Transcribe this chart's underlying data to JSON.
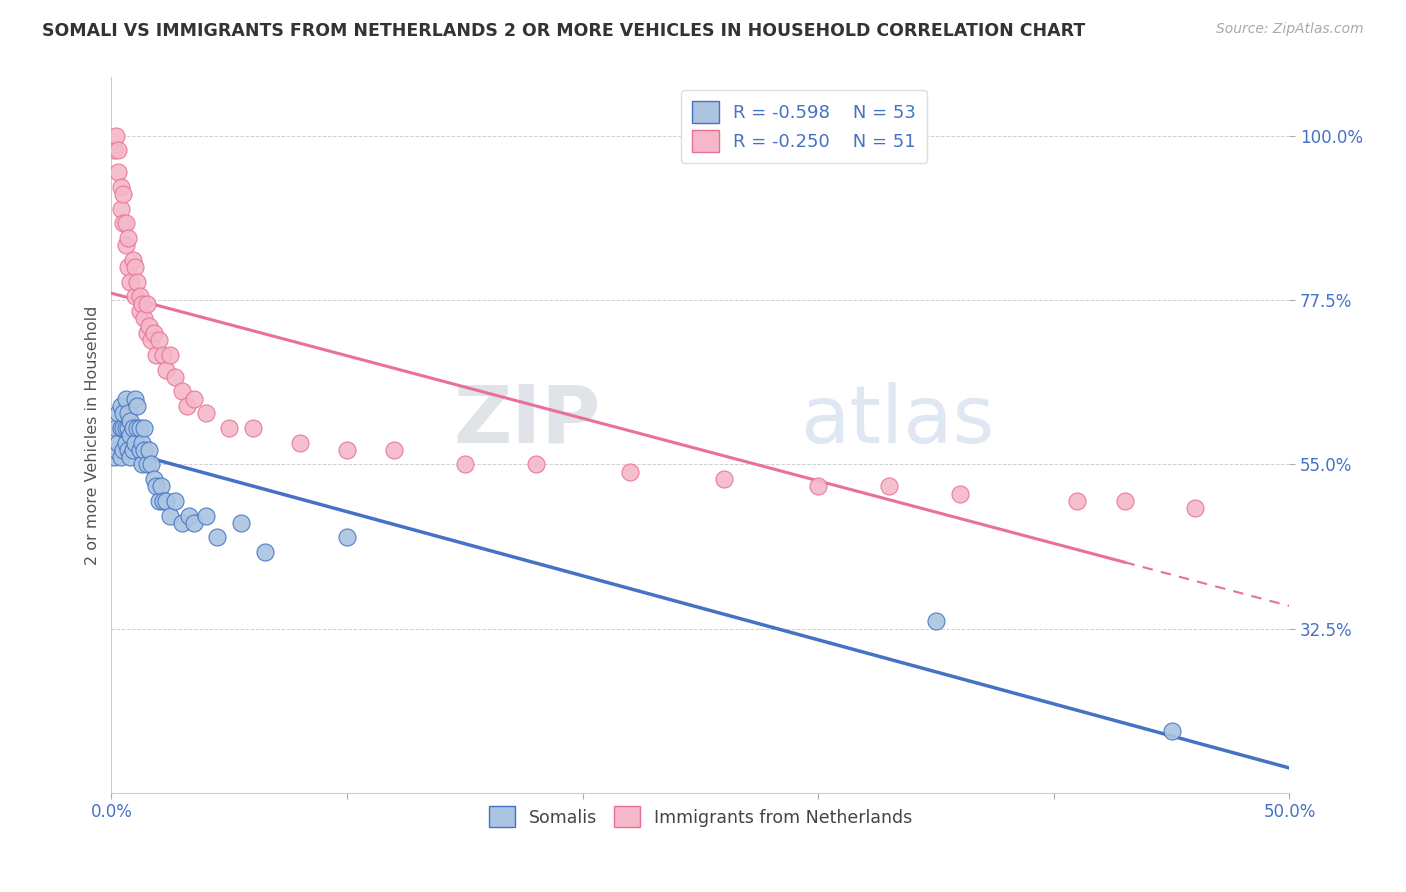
{
  "title": "SOMALI VS IMMIGRANTS FROM NETHERLANDS 2 OR MORE VEHICLES IN HOUSEHOLD CORRELATION CHART",
  "source": "Source: ZipAtlas.com",
  "ylabel": "2 or more Vehicles in Household",
  "ytick_vals": [
    0.325,
    0.55,
    0.775,
    1.0
  ],
  "ytick_labels": [
    "32.5%",
    "55.0%",
    "77.5%",
    "100.0%"
  ],
  "xlim": [
    0.0,
    0.5
  ],
  "ylim": [
    0.1,
    1.08
  ],
  "somali_color": "#aac4e2",
  "netherlands_color": "#f4b8c8",
  "somali_line_color": "#4472c4",
  "netherlands_line_color": "#e8709a",
  "legend_R_somali": "R = -0.598",
  "legend_N_somali": "N = 53",
  "legend_R_netherlands": "R = -0.250",
  "legend_N_netherlands": "N = 51",
  "watermark_zip": "ZIP",
  "watermark_atlas": "atlas",
  "somali_x": [
    0.001,
    0.002,
    0.002,
    0.003,
    0.003,
    0.004,
    0.004,
    0.004,
    0.005,
    0.005,
    0.005,
    0.006,
    0.006,
    0.006,
    0.007,
    0.007,
    0.007,
    0.008,
    0.008,
    0.008,
    0.009,
    0.009,
    0.01,
    0.01,
    0.011,
    0.011,
    0.012,
    0.012,
    0.013,
    0.013,
    0.014,
    0.014,
    0.015,
    0.016,
    0.017,
    0.018,
    0.019,
    0.02,
    0.021,
    0.022,
    0.023,
    0.025,
    0.027,
    0.03,
    0.033,
    0.035,
    0.04,
    0.045,
    0.055,
    0.065,
    0.1,
    0.35,
    0.45
  ],
  "somali_y": [
    0.56,
    0.57,
    0.6,
    0.58,
    0.62,
    0.56,
    0.6,
    0.63,
    0.57,
    0.6,
    0.62,
    0.58,
    0.6,
    0.64,
    0.57,
    0.6,
    0.62,
    0.59,
    0.61,
    0.56,
    0.57,
    0.6,
    0.58,
    0.64,
    0.6,
    0.63,
    0.57,
    0.6,
    0.55,
    0.58,
    0.57,
    0.6,
    0.55,
    0.57,
    0.55,
    0.53,
    0.52,
    0.5,
    0.52,
    0.5,
    0.5,
    0.48,
    0.5,
    0.47,
    0.48,
    0.47,
    0.48,
    0.45,
    0.47,
    0.43,
    0.45,
    0.335,
    0.185
  ],
  "netherlands_x": [
    0.001,
    0.002,
    0.003,
    0.003,
    0.004,
    0.004,
    0.005,
    0.005,
    0.006,
    0.006,
    0.007,
    0.007,
    0.008,
    0.009,
    0.01,
    0.01,
    0.011,
    0.012,
    0.012,
    0.013,
    0.014,
    0.015,
    0.015,
    0.016,
    0.017,
    0.018,
    0.019,
    0.02,
    0.022,
    0.023,
    0.025,
    0.027,
    0.03,
    0.032,
    0.035,
    0.04,
    0.05,
    0.06,
    0.08,
    0.1,
    0.12,
    0.15,
    0.18,
    0.22,
    0.26,
    0.3,
    0.33,
    0.36,
    0.41,
    0.43,
    0.46
  ],
  "netherlands_y": [
    0.98,
    1.0,
    0.95,
    0.98,
    0.9,
    0.93,
    0.88,
    0.92,
    0.88,
    0.85,
    0.82,
    0.86,
    0.8,
    0.83,
    0.78,
    0.82,
    0.8,
    0.78,
    0.76,
    0.77,
    0.75,
    0.73,
    0.77,
    0.74,
    0.72,
    0.73,
    0.7,
    0.72,
    0.7,
    0.68,
    0.7,
    0.67,
    0.65,
    0.63,
    0.64,
    0.62,
    0.6,
    0.6,
    0.58,
    0.57,
    0.57,
    0.55,
    0.55,
    0.54,
    0.53,
    0.52,
    0.52,
    0.51,
    0.5,
    0.5,
    0.49
  ]
}
